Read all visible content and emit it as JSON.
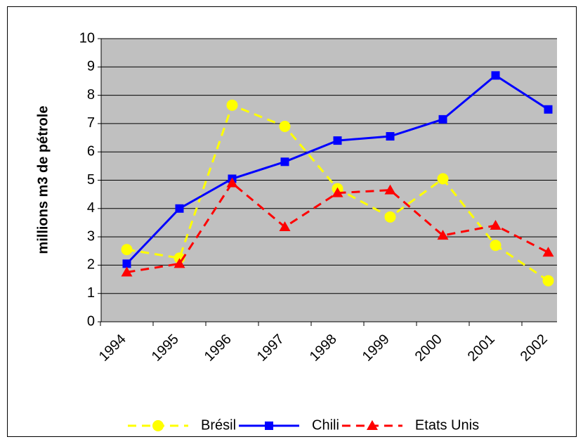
{
  "chart_data": {
    "type": "line",
    "ylabel": "millions m3 de pétrole",
    "categories": [
      "1994",
      "1995",
      "1996",
      "1997",
      "1998",
      "1999",
      "2000",
      "2001",
      "2002"
    ],
    "series": [
      {
        "name": "Brésil",
        "color": "#ffff00",
        "marker": "circle",
        "dash": true,
        "values": [
          2.55,
          2.25,
          7.65,
          6.9,
          4.7,
          3.7,
          5.05,
          2.7,
          1.45
        ]
      },
      {
        "name": "Chili",
        "color": "#0000ff",
        "marker": "square",
        "dash": false,
        "values": [
          2.05,
          4.0,
          5.05,
          5.65,
          6.4,
          6.55,
          7.15,
          8.7,
          7.5
        ]
      },
      {
        "name": "Etats Unis",
        "color": "#ff0000",
        "marker": "triangle",
        "dash": true,
        "values": [
          1.75,
          2.05,
          4.9,
          3.35,
          4.55,
          4.65,
          3.05,
          3.4,
          2.45
        ]
      }
    ],
    "ylim": [
      0,
      10
    ],
    "yticks": [
      0,
      1,
      2,
      3,
      4,
      5,
      6,
      7,
      8,
      9,
      10
    ],
    "grid": true,
    "legend": "bottom"
  }
}
